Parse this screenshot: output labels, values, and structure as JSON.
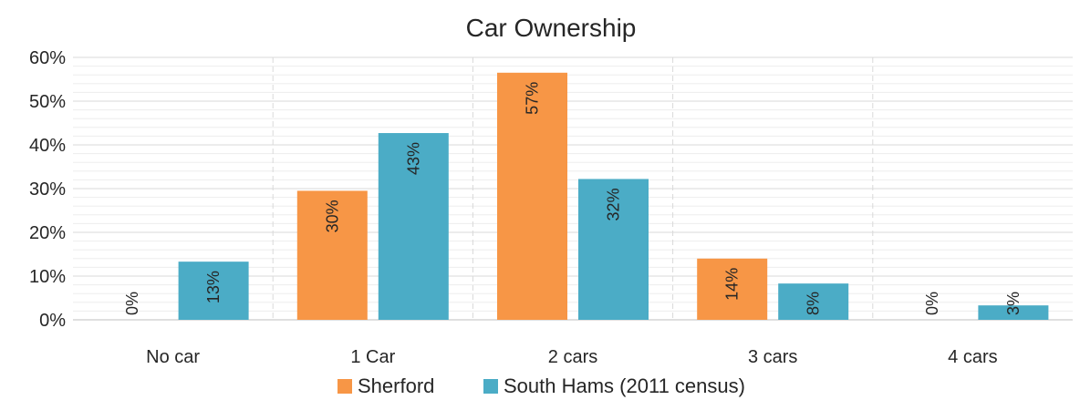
{
  "chart_data": {
    "type": "bar",
    "title": "Car Ownership",
    "xlabel": "",
    "ylabel": "",
    "categories": [
      "No car",
      "1 Car",
      "2 cars",
      "3 cars",
      "4 cars"
    ],
    "ylim": [
      0,
      60
    ],
    "yticks": [
      0,
      10,
      20,
      30,
      40,
      50,
      60
    ],
    "ytick_labels": [
      "0%",
      "10%",
      "20%",
      "30%",
      "40%",
      "50%",
      "60%"
    ],
    "grid": true,
    "legend_position": "bottom",
    "series": [
      {
        "name": "Sherford",
        "color": "#F79646",
        "values": [
          0,
          29.5,
          56.5,
          14,
          0
        ],
        "labels": [
          "0%",
          "30%",
          "57%",
          "14%",
          "0%"
        ]
      },
      {
        "name": "South Hams (2011 census)",
        "color": "#4BACC6",
        "values": [
          13.3,
          42.7,
          32.2,
          8.3,
          3.3
        ],
        "labels": [
          "13%",
          "43%",
          "32%",
          "8%",
          "3%"
        ]
      }
    ]
  }
}
